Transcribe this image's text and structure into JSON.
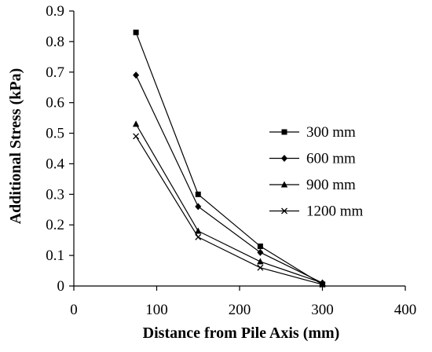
{
  "chart_data": {
    "type": "line",
    "title": "",
    "xlabel": "Distance from Pile Axis (mm)",
    "ylabel": "Additional Stress (kPa)",
    "xlim": [
      0,
      400
    ],
    "ylim": [
      0,
      0.9
    ],
    "xticks": [
      "0",
      "100",
      "200",
      "300",
      "400"
    ],
    "yticks": [
      "0",
      "0.1",
      "0.2",
      "0.3",
      "0.4",
      "0.5",
      "0.6",
      "0.7",
      "0.8",
      "0.9"
    ],
    "grid": false,
    "legend_position": "right",
    "series": [
      {
        "name": "300 mm",
        "marker": "square",
        "x": [
          75,
          150,
          225,
          300
        ],
        "y": [
          0.83,
          0.3,
          0.13,
          0.005
        ]
      },
      {
        "name": "600 mm",
        "marker": "diamond",
        "x": [
          75,
          150,
          225,
          300
        ],
        "y": [
          0.69,
          0.26,
          0.11,
          0.01
        ]
      },
      {
        "name": "900 mm",
        "marker": "triangle",
        "x": [
          75,
          150,
          225,
          300
        ],
        "y": [
          0.53,
          0.18,
          0.08,
          0.01
        ]
      },
      {
        "name": "1200 mm",
        "marker": "x",
        "x": [
          75,
          150,
          225,
          300
        ],
        "y": [
          0.49,
          0.16,
          0.06,
          0.005
        ]
      }
    ],
    "color": "#000000"
  }
}
